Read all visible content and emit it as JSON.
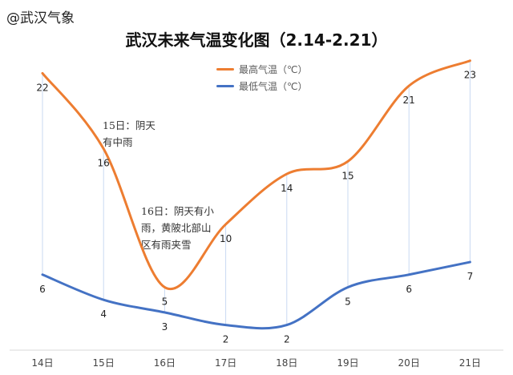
{
  "watermark": "@武汉气象",
  "annotations": [
    {
      "text": "15日：阴天\n有中雨"
    },
    {
      "text": "16日：阴天有小\n雨，黄陂北部山\n区有雨夹雪"
    }
  ],
  "chart_data": {
    "type": "line",
    "title": "武汉未来气温变化图（2.14-2.21）",
    "categories": [
      "14日",
      "15日",
      "16日",
      "17日",
      "18日",
      "19日",
      "20日",
      "21日"
    ],
    "series": [
      {
        "name": "最高气温（℃）",
        "values": [
          22,
          16,
          5,
          10,
          14,
          15,
          21,
          23
        ],
        "color": "#ED7D31"
      },
      {
        "name": "最低气温（℃）",
        "values": [
          6,
          4,
          3,
          2,
          2,
          5,
          6,
          7
        ],
        "color": "#4472C4"
      }
    ],
    "ylim": [
      0,
      24
    ],
    "xlabel": "",
    "ylabel": "",
    "legend": "top-center"
  }
}
